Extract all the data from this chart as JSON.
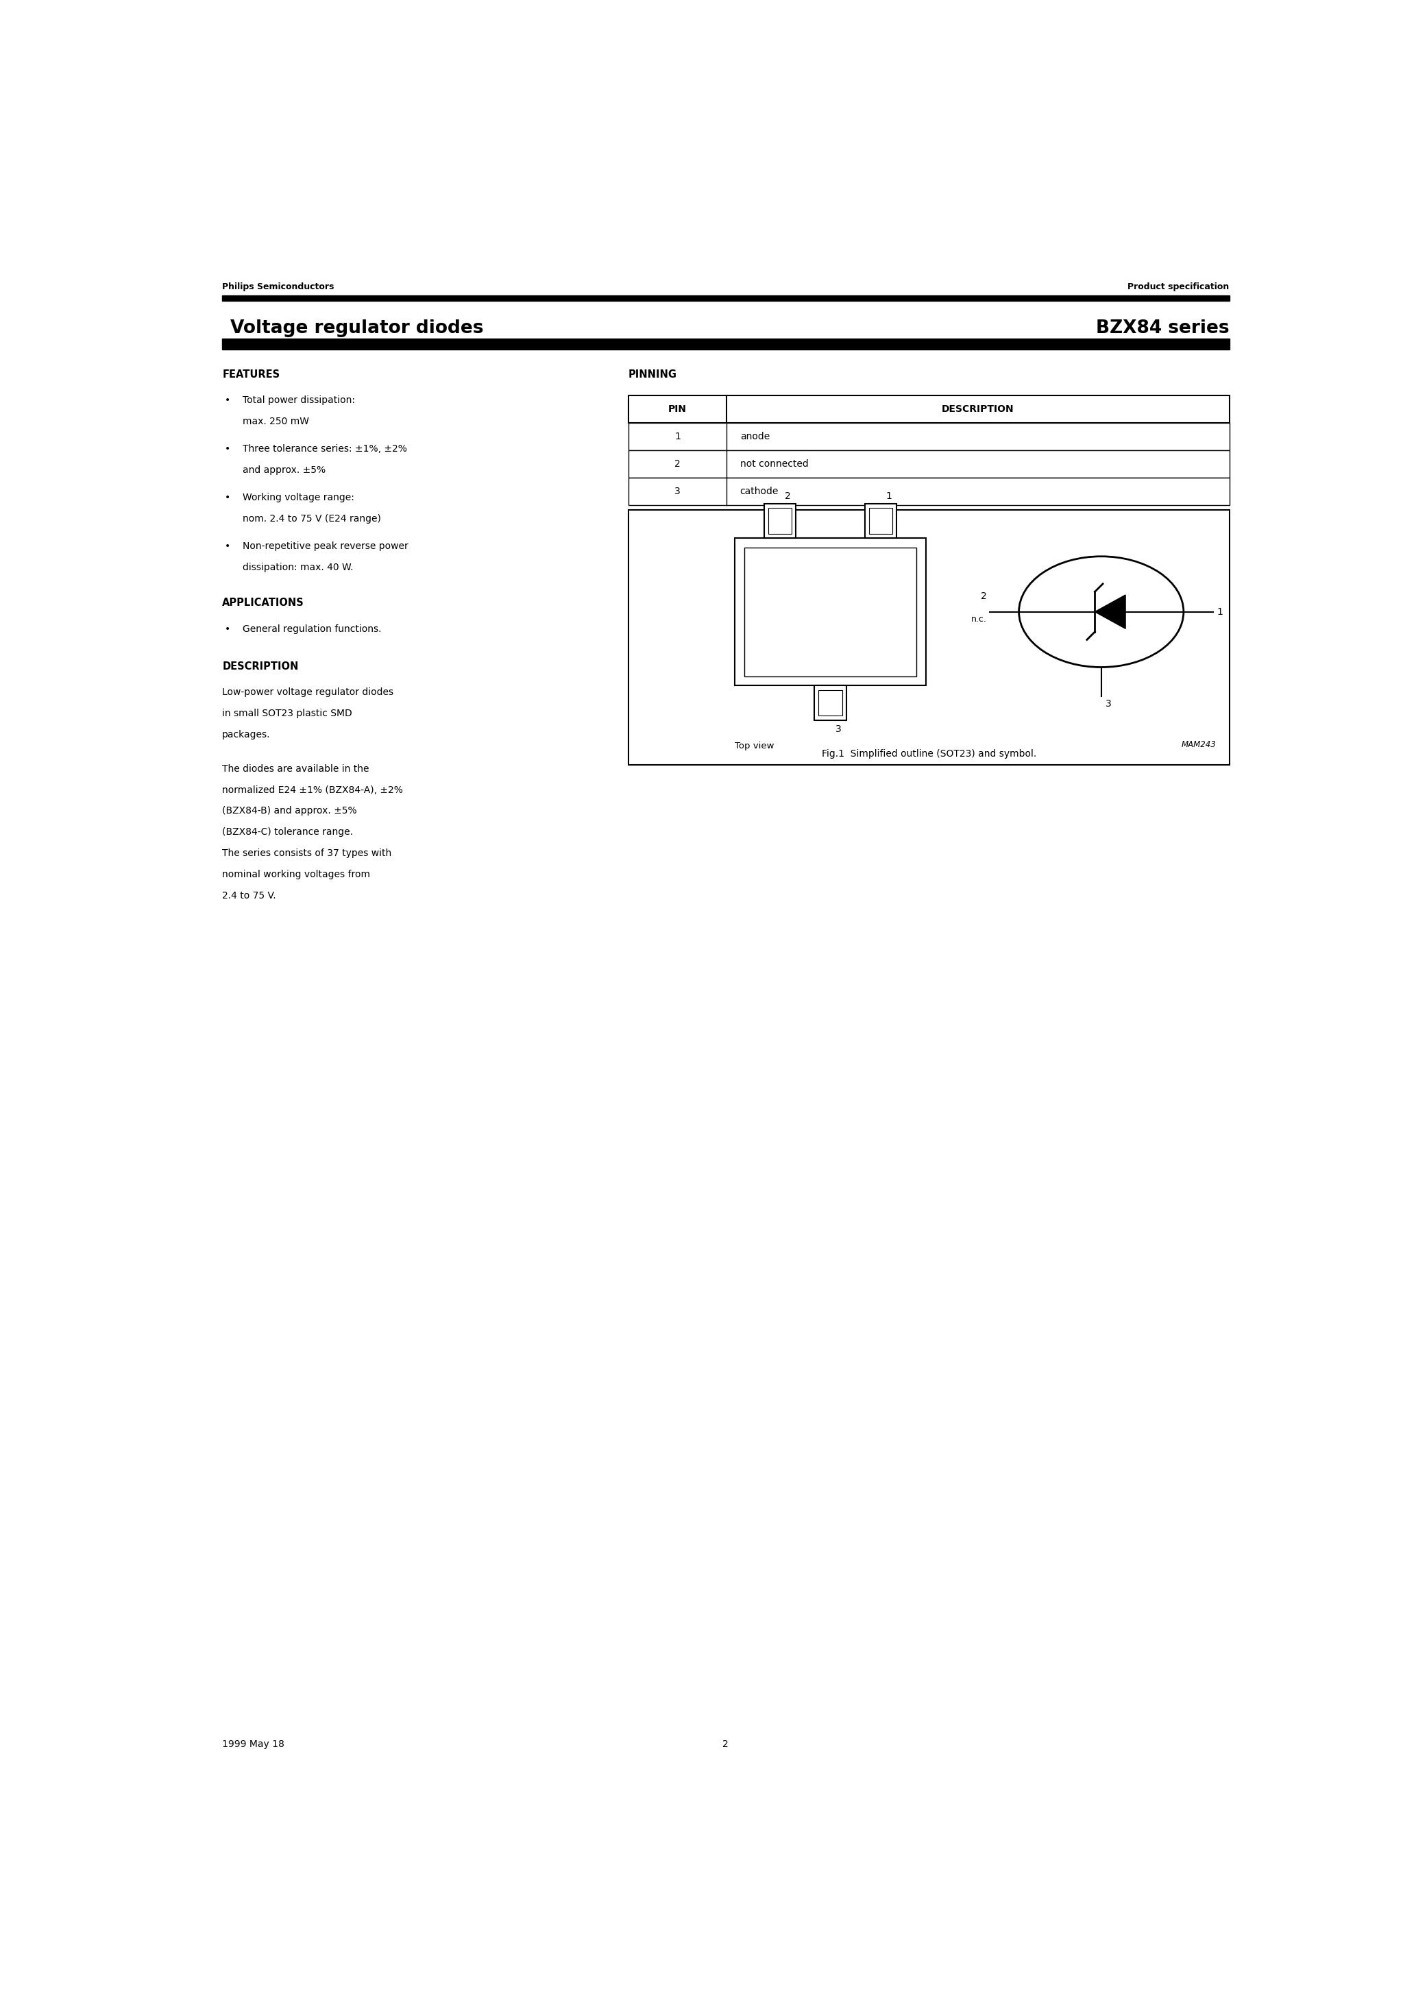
{
  "page_title_left": "Voltage regulator diodes",
  "page_title_right": "BZX84 series",
  "header_left": "Philips Semiconductors",
  "header_right": "Product specification",
  "features_title": "FEATURES",
  "features": [
    [
      "Total power dissipation:",
      "max. 250 mW"
    ],
    [
      "Three tolerance series: ±1%, ±2%",
      "and approx. ±5%"
    ],
    [
      "Working voltage range:",
      "nom. 2.4 to 75 V (E24 range)"
    ],
    [
      "Non-repetitive peak reverse power",
      "dissipation: max. 40 W."
    ]
  ],
  "applications_title": "APPLICATIONS",
  "applications": [
    "General regulation functions."
  ],
  "description_title": "DESCRIPTION",
  "description_para1": [
    "Low-power voltage regulator diodes",
    "in small SOT23 plastic SMD",
    "packages."
  ],
  "description_para2": [
    "The diodes are available in the",
    "normalized E24 ±1% (BZX84-A), ±2%",
    "(BZX84-B) and approx. ±5%",
    "(BZX84-C) tolerance range.",
    "The series consists of 37 types with",
    "nominal working voltages from",
    "2.4 to 75 V."
  ],
  "pinning_title": "PINNING",
  "pin_data": [
    [
      "1",
      "anode"
    ],
    [
      "2",
      "not connected"
    ],
    [
      "3",
      "cathode"
    ]
  ],
  "fig_caption": "Fig.1  Simplified outline (SOT23) and symbol.",
  "top_view_label": "Top view",
  "mam_label": "MAM243",
  "footer_left": "1999 May 18",
  "footer_center": "2",
  "bg_color": "#ffffff",
  "text_color": "#000000"
}
